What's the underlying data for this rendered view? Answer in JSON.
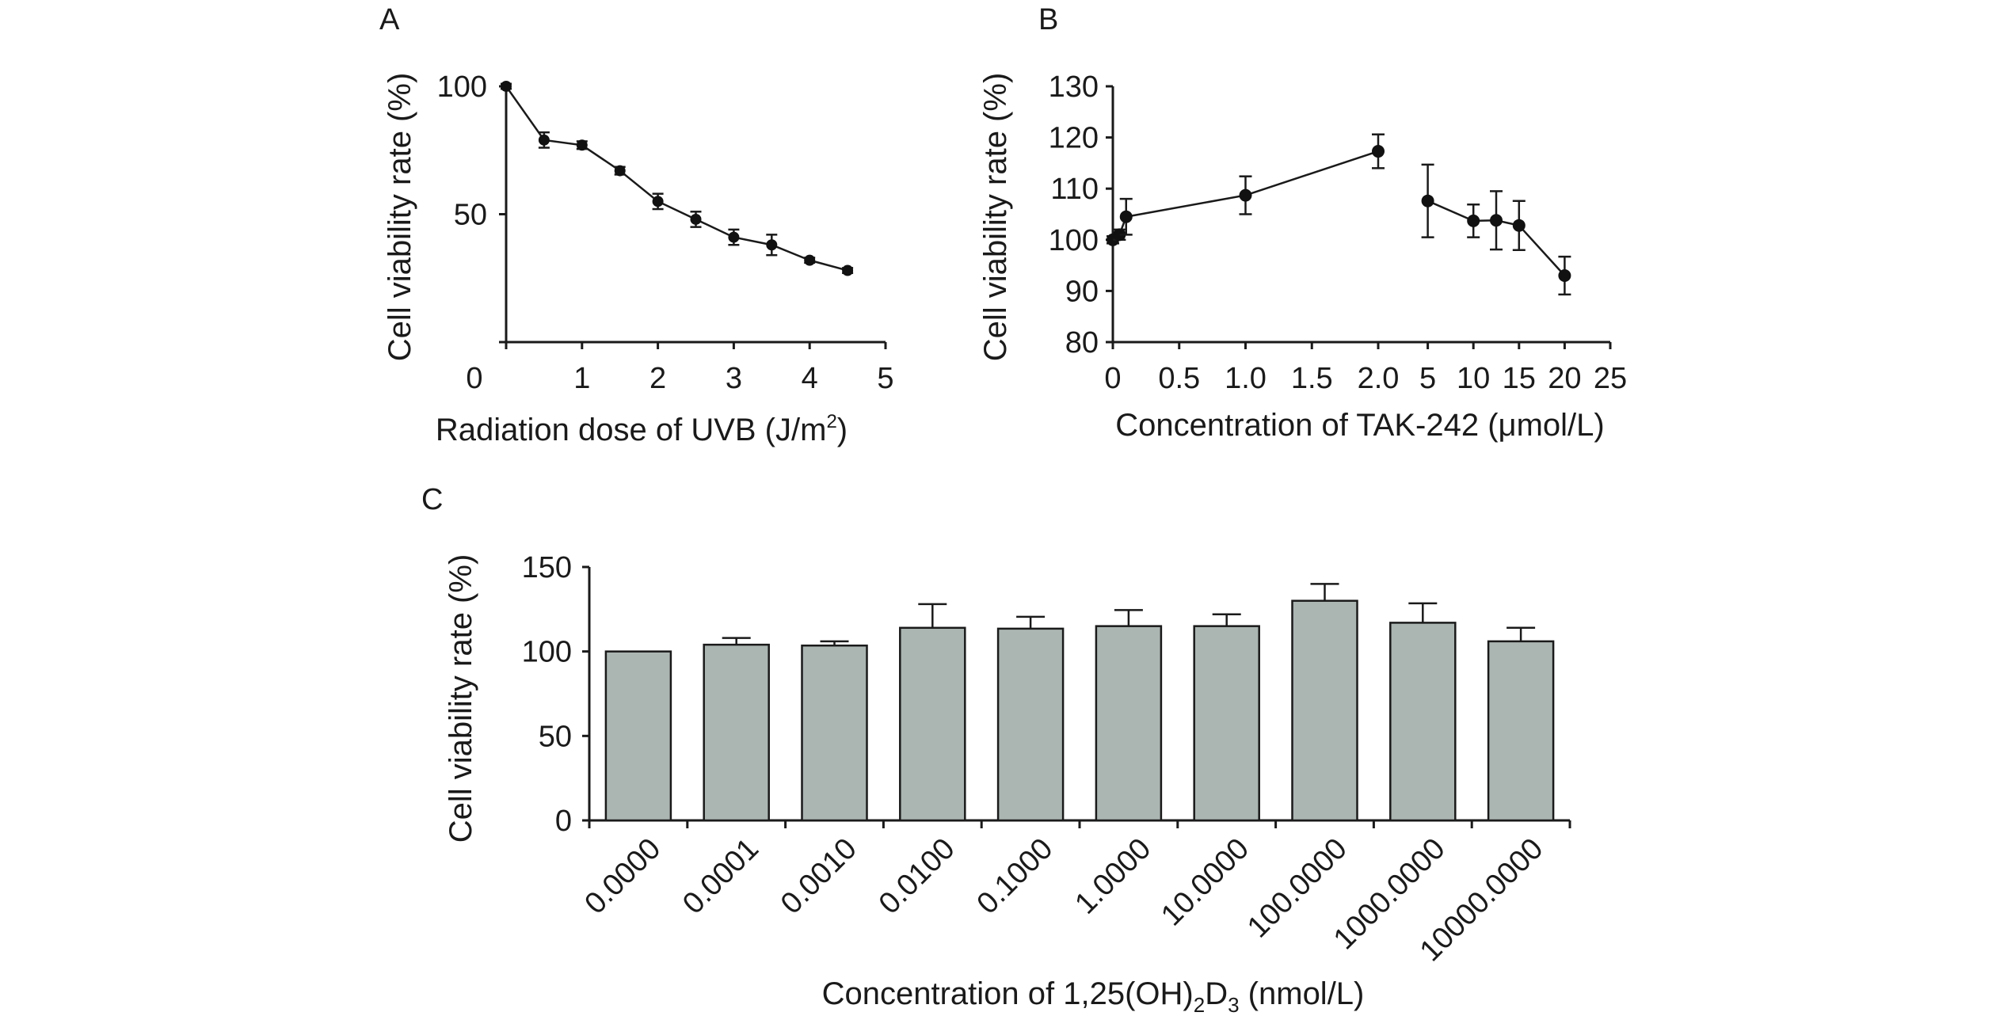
{
  "chart_data": [
    {
      "panel": "A",
      "type": "line",
      "xlabel": "Radiation dose of UVB (J/m",
      "xlabel_sup": "2",
      "xlabel_end": ")",
      "ylabel": "Cell viability rate (%)",
      "xlim": [
        0,
        5
      ],
      "ylim": [
        0,
        100
      ],
      "xticks": [
        "0",
        "1",
        "2",
        "3",
        "4",
        "5"
      ],
      "yticks": [
        "50",
        "100"
      ],
      "grid": false,
      "series": [
        {
          "x": [
            0,
            0.5,
            1,
            1.5,
            2,
            2.5,
            3,
            3.5,
            4,
            4.5
          ],
          "values": [
            100,
            79,
            77,
            67,
            55,
            48,
            41,
            38,
            32,
            28
          ],
          "errors": [
            1,
            3,
            1.5,
            1.5,
            3,
            3,
            3,
            4,
            1,
            1
          ]
        }
      ]
    },
    {
      "panel": "B",
      "type": "line",
      "xlabel": "Concentration of TAK-242 (μmol/L)",
      "ylabel": "Cell viability rate (%)",
      "ylim": [
        80,
        130
      ],
      "yticks": [
        "80",
        "90",
        "100",
        "110",
        "120",
        "130"
      ],
      "broken_x_axis": true,
      "xticks_left": [
        "0",
        "0.5",
        "1.0",
        "1.5",
        "2.0"
      ],
      "xticks_right": [
        "5",
        "10",
        "15",
        "20",
        "25"
      ],
      "grid": false,
      "series": [
        {
          "segment": "left",
          "x": [
            0,
            0.05,
            0.1,
            1.0,
            2.0
          ],
          "values": [
            100,
            101,
            104.5,
            108.7,
            117.3
          ],
          "errors": [
            0.7,
            1,
            3.5,
            3.7,
            3.3
          ]
        },
        {
          "segment": "right",
          "x": [
            5,
            10,
            12.5,
            15,
            20
          ],
          "values": [
            107.6,
            103.7,
            103.8,
            102.8,
            93
          ],
          "errors": [
            7.1,
            3.2,
            5.7,
            4.8,
            3.7
          ]
        }
      ]
    },
    {
      "panel": "C",
      "type": "bar",
      "xlabel": "Concentration of 1,25(OH)",
      "xlabel_sub1": "2",
      "xlabel_mid": "D",
      "xlabel_sub2": "3",
      "xlabel_end": " (nmol/L)",
      "ylabel": "Cell viability rate (%)",
      "ylim": [
        0,
        150
      ],
      "yticks": [
        "0",
        "50",
        "100",
        "150"
      ],
      "grid": false,
      "categories": [
        "0.0000",
        "0.0001",
        "0.0010",
        "0.0100",
        "0.1000",
        "1.0000",
        "10.0000",
        "100.0000",
        "1000.0000",
        "10000.0000"
      ],
      "values": [
        100,
        104,
        103.5,
        114,
        113.5,
        115,
        115,
        130,
        117,
        106
      ],
      "errors": [
        0,
        4,
        2.5,
        14,
        7,
        9.5,
        7,
        10,
        11.5,
        8
      ],
      "bar_color": "#abb5b2"
    }
  ]
}
